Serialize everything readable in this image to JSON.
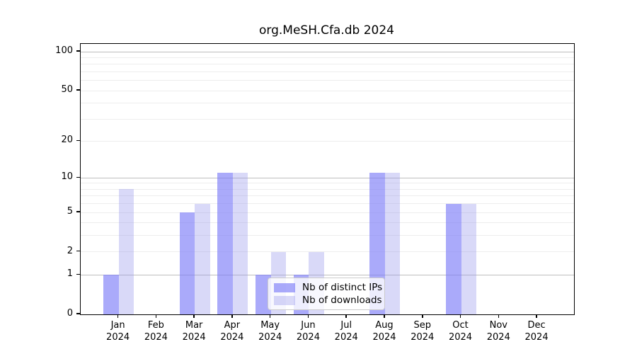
{
  "title": "org.MeSH.Cfa.db 2024",
  "chart_data": {
    "type": "bar",
    "title": "org.MeSH.Cfa.db 2024",
    "categories": [
      "Jan",
      "Feb",
      "Mar",
      "Apr",
      "May",
      "Jun",
      "Jul",
      "Aug",
      "Sep",
      "Oct",
      "Nov",
      "Dec"
    ],
    "year": "2024",
    "series": [
      {
        "name": "Nb of distinct IPs",
        "values": [
          1,
          0,
          5,
          11,
          1,
          1,
          0,
          11,
          0,
          6,
          0,
          0
        ],
        "color": "rgba(125,125,248,0.65)"
      },
      {
        "name": "Nb of downloads",
        "values": [
          8,
          0,
          6,
          11,
          2,
          2,
          0,
          11,
          0,
          6,
          0,
          0
        ],
        "color": "rgba(147,147,235,0.35)"
      }
    ],
    "xlabel": "",
    "ylabel": "",
    "yscale": "log1p",
    "ylim": [
      0,
      115
    ],
    "ytick_labels": [
      "0",
      "1",
      "2",
      "5",
      "10",
      "20",
      "50",
      "100"
    ],
    "ytick_values": [
      0,
      1,
      2,
      5,
      10,
      20,
      50,
      100
    ],
    "major_gridlines": [
      1,
      10,
      100
    ],
    "minor_gridlines": [
      2,
      3,
      4,
      5,
      6,
      7,
      8,
      9,
      20,
      30,
      40,
      50,
      60,
      70,
      80,
      90
    ],
    "grid_color_major": "#bdbdbd",
    "grid_color_minor": "#ededed",
    "legend_position": "inside-bottom-center",
    "legend": [
      "Nb of distinct IPs",
      "Nb of downloads"
    ]
  }
}
